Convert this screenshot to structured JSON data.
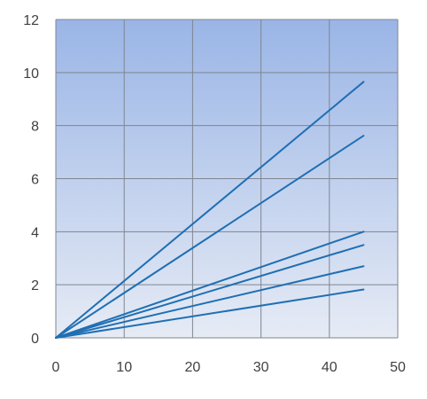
{
  "chart_data": {
    "type": "line",
    "title": "",
    "xlabel": "",
    "ylabel": "",
    "xlim": [
      0,
      50
    ],
    "ylim": [
      0,
      12
    ],
    "x_ticks": [
      0,
      10,
      20,
      30,
      40,
      50
    ],
    "y_ticks": [
      0,
      2,
      4,
      6,
      8,
      10,
      12
    ],
    "x_tick_labels": [
      "0",
      "10",
      "20",
      "30",
      "40",
      "50"
    ],
    "y_tick_labels": [
      "0",
      "2",
      "4",
      "6",
      "8",
      "10",
      "12"
    ],
    "grid": true,
    "legend": "none",
    "colors": {
      "plot_bg_top": "#9ab5e6",
      "plot_bg_bottom": "#e6ebf5",
      "grid": "#7f8690",
      "line": "#1f6fb4"
    },
    "series": [
      {
        "x": [
          0,
          45
        ],
        "values": [
          0,
          9.65
        ]
      },
      {
        "x": [
          0,
          45
        ],
        "values": [
          0,
          7.62
        ]
      },
      {
        "x": [
          0,
          45
        ],
        "values": [
          0,
          4.0
        ]
      },
      {
        "x": [
          0,
          45
        ],
        "values": [
          0,
          3.5
        ]
      },
      {
        "x": [
          0,
          45
        ],
        "values": [
          0,
          2.7
        ]
      },
      {
        "x": [
          0,
          45
        ],
        "values": [
          0,
          1.82
        ]
      }
    ]
  }
}
